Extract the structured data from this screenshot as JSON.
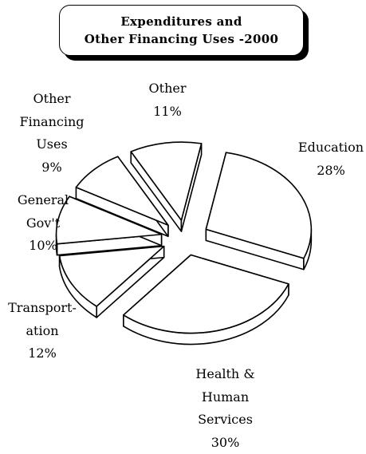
{
  "title": {
    "line1": "Expenditures and",
    "line2": "Other Financing Uses -2000"
  },
  "chart_data": {
    "type": "pie",
    "title": "Expenditures and Other Financing Uses -2000",
    "exploded": true,
    "three_d": true,
    "slices": [
      {
        "label_lines": [
          "Education"
        ],
        "pct_label": "28%",
        "value": 28
      },
      {
        "label_lines": [
          "Health &",
          "Human",
          "Services"
        ],
        "pct_label": "30%",
        "value": 30
      },
      {
        "label_lines": [
          "Transport-",
          "ation"
        ],
        "pct_label": "12%",
        "value": 12
      },
      {
        "label_lines": [
          "General",
          "Gov't"
        ],
        "pct_label": "10%",
        "value": 10
      },
      {
        "label_lines": [
          "Other",
          "Financing",
          "Uses"
        ],
        "pct_label": "9%",
        "value": 9
      },
      {
        "label_lines": [
          "Other"
        ],
        "pct_label": "11%",
        "value": 11
      }
    ]
  }
}
